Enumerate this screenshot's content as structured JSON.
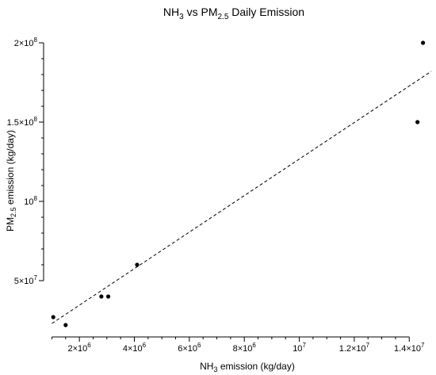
{
  "chart_data": {
    "type": "scatter",
    "title": {
      "pre": "NH",
      "sub1": "3",
      "mid": " vs PM",
      "sub2": "2.5",
      "post": " Daily Emission"
    },
    "xlabel": {
      "pre": "NH",
      "sub": "3",
      "post": " emission (kg/day)"
    },
    "ylabel": {
      "pre": "PM",
      "sub": "2.5",
      "post": " emission (kg/day)"
    },
    "xlim": [
      900000,
      14800000
    ],
    "ylim": [
      19000000,
      207000000
    ],
    "x_ticks": [
      {
        "value": 2000000,
        "base": "2",
        "mult": "×",
        "ten": "10",
        "exp": "6"
      },
      {
        "value": 4000000,
        "base": "4",
        "mult": "×",
        "ten": "10",
        "exp": "6"
      },
      {
        "value": 6000000,
        "base": "6",
        "mult": "×",
        "ten": "10",
        "exp": "6"
      },
      {
        "value": 8000000,
        "base": "8",
        "mult": "×",
        "ten": "10",
        "exp": "6"
      },
      {
        "value": 10000000,
        "base": "",
        "mult": "",
        "ten": "10",
        "exp": "7"
      },
      {
        "value": 12000000,
        "base": "1.2",
        "mult": "×",
        "ten": "10",
        "exp": "7"
      },
      {
        "value": 14000000,
        "base": "1.4",
        "mult": "×",
        "ten": "10",
        "exp": "7"
      }
    ],
    "y_ticks": [
      {
        "value": 50000000,
        "base": "5",
        "mult": "×",
        "ten": "10",
        "exp": "7"
      },
      {
        "value": 100000000,
        "base": "",
        "mult": "",
        "ten": "10",
        "exp": "8"
      },
      {
        "value": 150000000,
        "base": "1.5",
        "mult": "×",
        "ten": "10",
        "exp": "8"
      },
      {
        "value": 200000000,
        "base": "2",
        "mult": "×",
        "ten": "10",
        "exp": "8"
      }
    ],
    "x_minor_step": 500000,
    "y_minor_step": 10000000,
    "points": [
      {
        "x": 1050000,
        "y": 27000000
      },
      {
        "x": 1500000,
        "y": 22000000
      },
      {
        "x": 2800000,
        "y": 40000000
      },
      {
        "x": 3050000,
        "y": 40000000
      },
      {
        "x": 4100000,
        "y": 60000000
      },
      {
        "x": 14300000,
        "y": 150000000
      },
      {
        "x": 14500000,
        "y": 200000000
      }
    ],
    "trendline": {
      "style": "dashed",
      "from": {
        "x": 1000000,
        "y": 23000000
      },
      "to": {
        "x": 14800000,
        "y": 182000000
      }
    },
    "grid": false,
    "legend": "none",
    "colors": {
      "point": "#000000",
      "line": "#000000",
      "axis": "#000000"
    }
  }
}
